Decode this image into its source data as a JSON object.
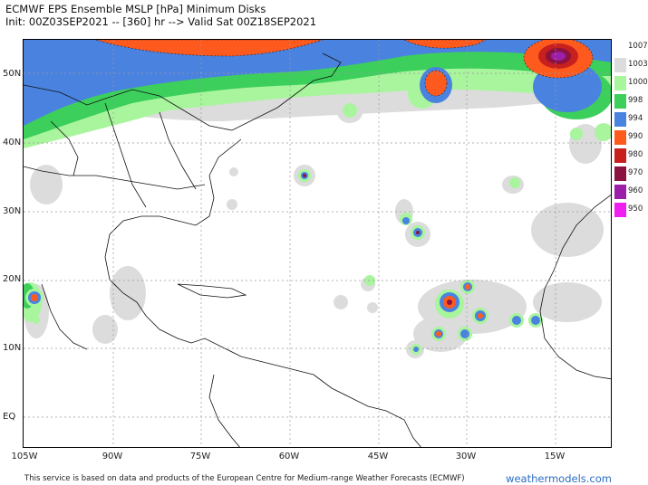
{
  "header": {
    "title_line1": "ECMWF EPS Ensemble MSLP [hPa] Minimum Disks",
    "title_line2": "Init: 00Z03SEP2021 -- [360] hr --> Valid Sat 00Z18SEP2021"
  },
  "map": {
    "lat_labels": [
      "50N",
      "40N",
      "30N",
      "20N",
      "10N",
      "EQ"
    ],
    "lon_labels": [
      "105W",
      "90W",
      "75W",
      "60W",
      "45W",
      "30W",
      "15W"
    ]
  },
  "legend": {
    "levels": [
      {
        "label": "1007",
        "color": "#ffffff"
      },
      {
        "label": "1003",
        "color": "#dcdcdc"
      },
      {
        "label": "1000",
        "color": "#a9f59d"
      },
      {
        "label": "998",
        "color": "#3ccf5c"
      },
      {
        "label": "994",
        "color": "#4a82e0"
      },
      {
        "label": "990",
        "color": "#ff5a1e"
      },
      {
        "label": "980",
        "color": "#c8201e"
      },
      {
        "label": "970",
        "color": "#8c1240"
      },
      {
        "label": "960",
        "color": "#9b1fa8"
      },
      {
        "label": "950",
        "color": "#f01ef0"
      }
    ]
  },
  "footer": {
    "credit": "This service is based on data and products of the European Centre for Medium-range Weather Forecasts (ECMWF)",
    "brand": "weathermodels.com"
  }
}
